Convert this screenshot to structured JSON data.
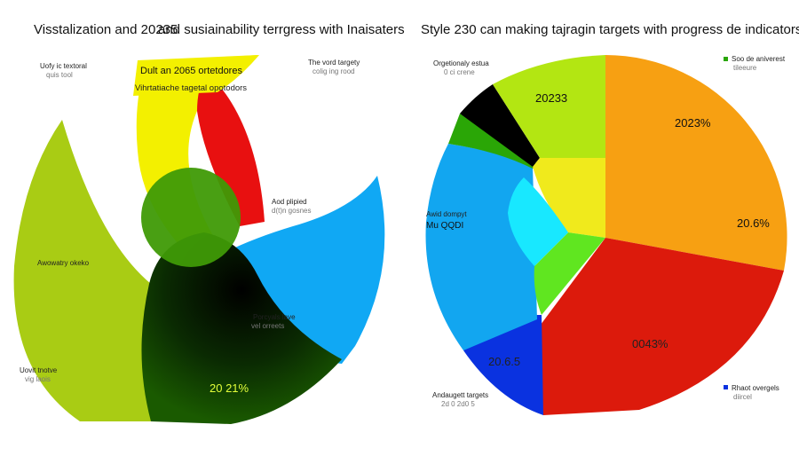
{
  "chart_data": [
    {
      "type": "area",
      "title": "Visstalization and 20235",
      "title_right": "and susiainability terrgress with Inaisaters",
      "value_label": "20 21%",
      "segments": [
        {
          "name": "yellow-arc",
          "color": "#f3f000"
        },
        {
          "name": "red-arc",
          "color": "#e81010"
        },
        {
          "name": "lime-arc",
          "color": "#a9cc14"
        },
        {
          "name": "blue-arc",
          "color": "#10a8f4"
        },
        {
          "name": "dark-green-core",
          "color": "#114400"
        },
        {
          "name": "center-green-disc",
          "color": "#3f9a06"
        }
      ],
      "callouts": [
        {
          "line1": "Uofy ic textoral",
          "line2": "quis tool"
        },
        {
          "line1": "The vord targety",
          "line2": "colig ing rood"
        },
        {
          "line1": "Aod plipied",
          "line2": "d(t)n gosnes"
        },
        {
          "line1": "Awowatry okeko",
          "line2": ""
        },
        {
          "line1": "Porcyals lave",
          "line2": "vel orreets"
        },
        {
          "line1": "Uovit tnotve",
          "line2": "vig laois"
        }
      ],
      "banner": {
        "line1": "Dult an 2065 ortetdores",
        "line2": "Vihrtatiache tagetal opotodors"
      }
    },
    {
      "type": "pie",
      "title": "Style 230 can making tajragin targets with progress de indicators",
      "slices": [
        {
          "name": "orange",
          "label": "2023%",
          "color": "#f7a012"
        },
        {
          "name": "orange-lower",
          "label": "20.6%",
          "color": "#f7a012"
        },
        {
          "name": "red",
          "label": "0043%",
          "color": "#dc1a0c"
        },
        {
          "name": "blue",
          "label": "20.6.5",
          "color": "#0a32e0"
        },
        {
          "name": "sky-blue",
          "label": "",
          "color": "#12a6f0"
        },
        {
          "name": "dark-green",
          "label": "",
          "color": "#2aa606"
        },
        {
          "name": "black",
          "label": "",
          "color": "#000000"
        },
        {
          "name": "lime",
          "label": "20233",
          "color": "#b3e612"
        }
      ],
      "center_colors": [
        "#f0ea1c",
        "#60e620",
        "#18e8ff",
        "#10a8f4"
      ],
      "callouts": [
        {
          "line1": "Orgetionaly estua",
          "line2": "0 ci crene"
        },
        {
          "line1": "Awid dompyt",
          "line2": "Mu QQDI"
        },
        {
          "line1": "Andaugett targets",
          "line2": "2d 0 2d0 5"
        }
      ],
      "legend": [
        {
          "label": "Soo de aniverest",
          "sub": "tileeure",
          "color": "#2aa606"
        },
        {
          "label": "Rhaot overgels",
          "sub": "diircel",
          "color": "#0a32e0"
        }
      ]
    }
  ]
}
